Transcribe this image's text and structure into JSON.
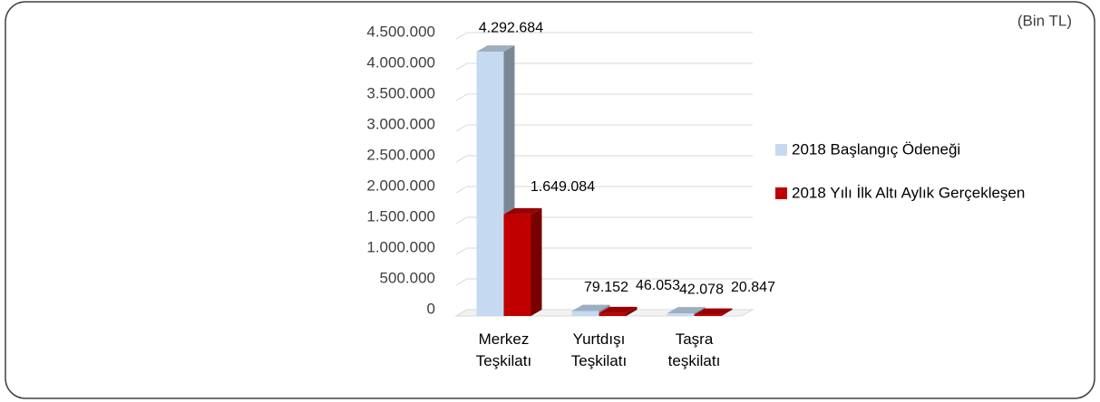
{
  "chart_data": {
    "type": "bar3d",
    "annotation": "(Bin TL)",
    "categories": [
      "Merkez Teşkilatı",
      "Yurtdışı Teşkilatı",
      "Taşra teşkilatı"
    ],
    "series": [
      {
        "name": "2018 Başlangıç Ödeneği",
        "color": "#c5d9f1",
        "values": [
          4292684,
          79152,
          42078
        ],
        "value_labels": [
          "4.292.684",
          "79.152",
          "42.078"
        ]
      },
      {
        "name": "2018 Yılı İlk Altı Aylık Gerçekleşen",
        "color": "#c00000",
        "values": [
          1649084,
          46053,
          20847
        ],
        "value_labels": [
          "1.649.084",
          "46.053",
          "20.847"
        ]
      }
    ],
    "ylim": [
      0,
      4500000
    ],
    "yticks": [
      0,
      {
        "value": 500000,
        "label": "500.000"
      },
      {
        "value": 1000000,
        "label": "1.000.000"
      },
      {
        "value": 1500000,
        "label": "1.500.000"
      },
      {
        "value": 2000000,
        "label": "2.000.000"
      },
      {
        "value": 2500000,
        "label": "2.500.000"
      },
      {
        "value": 3000000,
        "label": "3.000.000"
      },
      {
        "value": 3500000,
        "label": "3.500.000"
      },
      {
        "value": 4000000,
        "label": "4.000.000"
      },
      {
        "value": 4500000,
        "label": "4.500.000"
      }
    ],
    "grid": true,
    "legend": "right"
  }
}
